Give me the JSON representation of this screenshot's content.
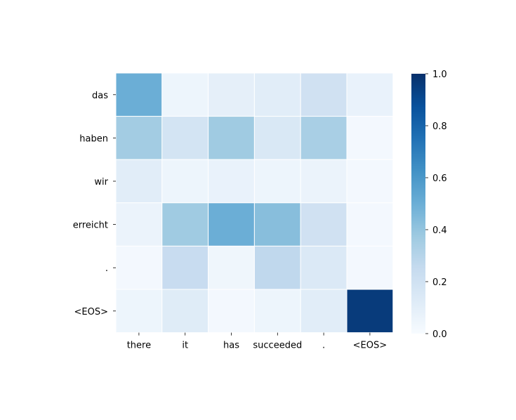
{
  "chart_data": {
    "type": "heatmap",
    "title": "",
    "xlabel": "",
    "ylabel": "",
    "x_categories": [
      "there",
      "it",
      "has",
      "succeeded",
      ".",
      "<EOS>"
    ],
    "y_categories": [
      "das",
      "haben",
      "wir",
      "erreicht",
      ".",
      "<EOS>"
    ],
    "values": [
      [
        0.5,
        0.05,
        0.09,
        0.11,
        0.2,
        0.07
      ],
      [
        0.36,
        0.18,
        0.37,
        0.15,
        0.34,
        0.02
      ],
      [
        0.11,
        0.05,
        0.07,
        0.05,
        0.06,
        0.02
      ],
      [
        0.06,
        0.37,
        0.5,
        0.43,
        0.2,
        0.02
      ],
      [
        0.02,
        0.24,
        0.04,
        0.27,
        0.14,
        0.02
      ],
      [
        0.05,
        0.12,
        0.02,
        0.05,
        0.11,
        0.96
      ]
    ],
    "colormap": "Blues",
    "vmin": 0.0,
    "vmax": 1.0,
    "colorbar": {
      "ticks": [
        "0.0",
        "0.2",
        "0.4",
        "0.6",
        "0.8",
        "1.0"
      ]
    },
    "cell_gap_color": "#ffffff"
  }
}
